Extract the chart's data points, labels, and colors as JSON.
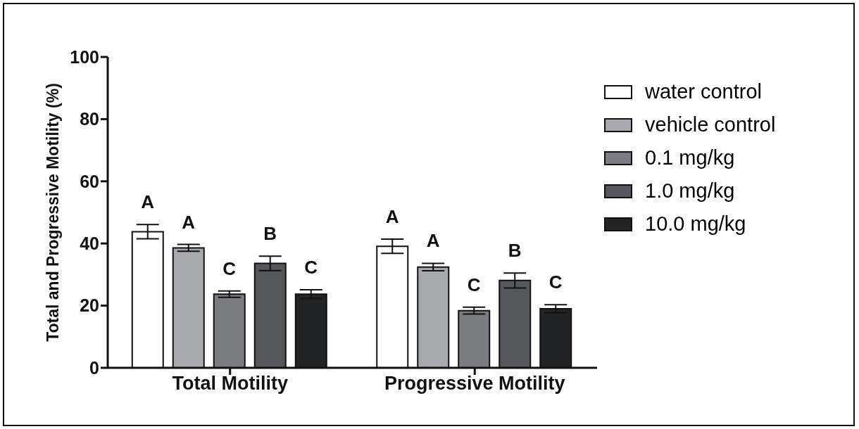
{
  "chart_data": {
    "type": "bar",
    "ylabel": "Total and Progressive Motility (%)",
    "categories": [
      "Total Motility",
      "Progressive Motility"
    ],
    "series": [
      {
        "name": "water control",
        "color": "#ffffff",
        "values": [
          43.8,
          39.1
        ],
        "errors": [
          2.3,
          2.3
        ]
      },
      {
        "name": "vehicle control",
        "color": "#a6a8ab",
        "values": [
          38.6,
          32.4
        ],
        "errors": [
          1.1,
          1.2
        ]
      },
      {
        "name": "0.1 mg/kg",
        "color": "#7b7d80",
        "values": [
          23.7,
          18.4
        ],
        "errors": [
          1.0,
          1.1
        ]
      },
      {
        "name": "1.0 mg/kg",
        "color": "#55575a",
        "values": [
          33.6,
          28.1
        ],
        "errors": [
          2.3,
          2.4
        ]
      },
      {
        "name": "10.0 mg/kg",
        "color": "#222325",
        "values": [
          23.7,
          19.0
        ],
        "errors": [
          1.4,
          1.3
        ]
      }
    ],
    "ylim": [
      0,
      100
    ],
    "yticks": [
      0,
      20,
      40,
      60,
      80,
      100
    ],
    "grid": false,
    "legend": "right",
    "annotations": [
      "A",
      "A",
      "C",
      "B",
      "C",
      "A",
      "A",
      "C",
      "B",
      "C"
    ]
  }
}
